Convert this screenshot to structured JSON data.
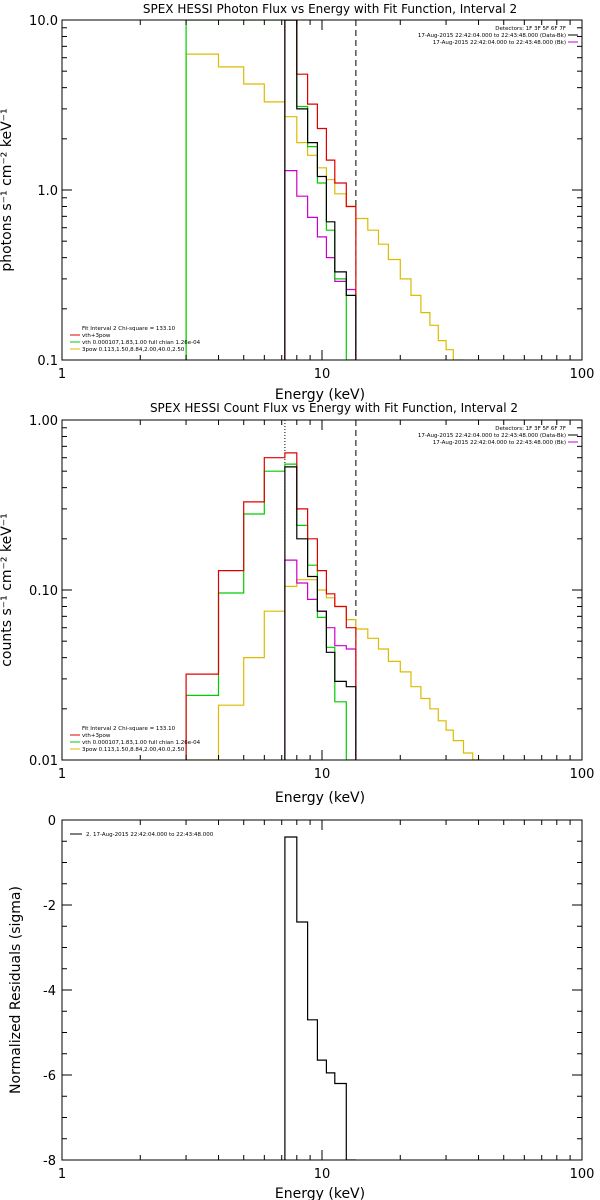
{
  "colors": {
    "black": "#000000",
    "red": "#dd0000",
    "green": "#00cc00",
    "magenta": "#cc00cc",
    "yellow": "#ddbb00"
  },
  "chart_data": [
    {
      "type": "line",
      "scale": "log-log",
      "title": "SPEX HESSI Photon Flux vs Energy with Fit Function, Interval 2",
      "xlabel": "Energy (keV)",
      "ylabel": "photons s⁻¹ cm⁻² keV⁻¹",
      "xlim": [
        1,
        100
      ],
      "ylim": [
        0.1,
        10
      ],
      "xticks": [
        "1",
        "10",
        "100"
      ],
      "yticks": [
        "10.0",
        "1.0",
        "0.1"
      ],
      "vlines": [
        {
          "x": 7.2,
          "style": "dotted"
        },
        {
          "x": 13.5,
          "style": "dashed"
        }
      ],
      "legend_tr": [
        {
          "text": "Detectors: 1F 3F 5F 6F 7F",
          "color": "#000000"
        },
        {
          "text": "17-Aug-2015 22:42:04.000 to 22:43:48.000 (Data-Bk)",
          "color": "#000000"
        },
        {
          "text": "17-Aug-2015 22:42:04.000 to 22:43:48.000 (Bk)",
          "color": "#cc00cc"
        }
      ],
      "legend_bl": [
        {
          "text": "Fit Interval  2    Chi-square = 133.10",
          "color": "#000000"
        },
        {
          "text": "vth+3pow",
          "color": "#dd0000"
        },
        {
          "text": "vth 0.000107,1.83,1.00  full chian 1.26e-04",
          "color": "#00cc00"
        },
        {
          "text": "3pow 0.113,1.50,8.84,2.00,40.0,2.50",
          "color": "#ddbb00"
        }
      ],
      "series": [
        {
          "color": "#000000",
          "edges": [
            7.2,
            8.0,
            8.8,
            9.6,
            10.4,
            11.2,
            12.4,
            13.5
          ],
          "values": [
            10.0,
            3.0,
            1.9,
            1.2,
            0.65,
            0.33,
            0.24
          ]
        },
        {
          "color": "#dd0000",
          "edges": [
            7.2,
            8.0,
            8.8,
            9.6,
            10.4,
            11.2,
            12.4,
            13.5
          ],
          "values": [
            10.0,
            4.8,
            3.2,
            2.3,
            1.5,
            1.1,
            0.8
          ]
        },
        {
          "color": "#00cc00",
          "edges": [
            3.0,
            7.2,
            8.0,
            8.8,
            9.6,
            10.4,
            11.2,
            12.4,
            13.5
          ],
          "values": [
            10.0,
            10.0,
            3.1,
            1.8,
            1.1,
            0.58,
            0.3,
            0.1
          ]
        },
        {
          "color": "#cc00cc",
          "edges": [
            7.2,
            8.0,
            8.8,
            9.6,
            10.4,
            11.2,
            12.4,
            13.5
          ],
          "values": [
            1.3,
            0.92,
            0.69,
            0.53,
            0.4,
            0.29,
            0.26
          ]
        },
        {
          "color": "#ddbb00",
          "edges": [
            3.0,
            4.0,
            5.0,
            6.0,
            7.2,
            8.0,
            8.8,
            9.6,
            10.4,
            11.2,
            12.4,
            13.5,
            15.0,
            16.5,
            18.0,
            20.0,
            22.0,
            24.0,
            26.0,
            28.0,
            30.0,
            32.0,
            35.0
          ],
          "values": [
            6.3,
            5.3,
            4.2,
            3.3,
            2.7,
            1.9,
            1.6,
            1.35,
            1.15,
            0.95,
            0.8,
            0.68,
            0.58,
            0.48,
            0.39,
            0.3,
            0.24,
            0.19,
            0.16,
            0.13,
            0.115,
            0.1
          ]
        }
      ]
    },
    {
      "type": "line",
      "scale": "log-log",
      "title": "SPEX HESSI Count Flux vs Energy with Fit Function, Interval 2",
      "xlabel": "Energy (keV)",
      "ylabel": "counts s⁻¹ cm⁻² keV⁻¹",
      "xlim": [
        1,
        100
      ],
      "ylim": [
        0.01,
        1
      ],
      "xticks": [
        "1",
        "10",
        "100"
      ],
      "yticks": [
        "1.00",
        "0.10",
        "0.01"
      ],
      "vlines": [
        {
          "x": 7.2,
          "style": "dotted"
        },
        {
          "x": 13.5,
          "style": "dashed"
        }
      ],
      "legend_tr": [
        {
          "text": "Detectors: 1F 3F 5F 6F 7F",
          "color": "#000000"
        },
        {
          "text": "17-Aug-2015 22:42:04.000 to 22:43:48.000 (Data-Bk)",
          "color": "#000000"
        },
        {
          "text": "17-Aug-2015 22:42:04.000 to 22:43:48.000 (Bk)",
          "color": "#cc00cc"
        }
      ],
      "legend_bl": [
        {
          "text": "Fit Interval  2    Chi-square = 133.10",
          "color": "#000000"
        },
        {
          "text": "vth+3pow",
          "color": "#dd0000"
        },
        {
          "text": "vth 0.000107,1.83,1.00  full chian 1.26e-04",
          "color": "#00cc00"
        },
        {
          "text": "3pow 0.113,1.50,8.84,2.00,40.0,2.50",
          "color": "#ddbb00"
        }
      ],
      "series": [
        {
          "color": "#000000",
          "edges": [
            7.2,
            8.0,
            8.8,
            9.6,
            10.4,
            11.2,
            12.4,
            13.5
          ],
          "values": [
            0.53,
            0.2,
            0.12,
            0.075,
            0.043,
            0.029,
            0.027
          ]
        },
        {
          "color": "#dd0000",
          "edges": [
            3.0,
            4.0,
            5.0,
            6.0,
            7.2,
            8.0,
            8.8,
            9.6,
            10.4,
            11.2,
            12.4,
            13.5
          ],
          "values": [
            0.032,
            0.13,
            0.33,
            0.6,
            0.64,
            0.3,
            0.2,
            0.13,
            0.095,
            0.08,
            0.06
          ]
        },
        {
          "color": "#00cc00",
          "edges": [
            3.0,
            4.0,
            5.0,
            6.0,
            7.2,
            8.0,
            8.8,
            9.6,
            10.4,
            11.2,
            12.4,
            13.5
          ],
          "values": [
            0.024,
            0.096,
            0.28,
            0.5,
            0.55,
            0.24,
            0.14,
            0.069,
            0.046,
            0.022,
            0.01
          ]
        },
        {
          "color": "#cc00cc",
          "edges": [
            7.2,
            8.0,
            8.8,
            9.6,
            10.4,
            11.2,
            12.4,
            13.5
          ],
          "values": [
            0.15,
            0.11,
            0.088,
            0.075,
            0.06,
            0.047,
            0.045
          ]
        },
        {
          "color": "#ddbb00",
          "edges": [
            3.0,
            4.0,
            5.0,
            6.0,
            7.2,
            8.0,
            8.8,
            9.6,
            10.4,
            11.2,
            12.4,
            13.5,
            15.0,
            16.5,
            18.0,
            20.0,
            22.0,
            24.0,
            26.0,
            28.0,
            30.0,
            32.0,
            35.0,
            38.0,
            41.0
          ],
          "values": [
            0.01,
            0.021,
            0.04,
            0.075,
            0.105,
            0.115,
            0.115,
            0.1,
            0.09,
            0.08,
            0.067,
            0.059,
            0.052,
            0.045,
            0.038,
            0.033,
            0.027,
            0.023,
            0.02,
            0.017,
            0.015,
            0.013,
            0.011,
            0.01
          ]
        }
      ]
    },
    {
      "type": "line",
      "scale": "log-x",
      "title": "",
      "xlabel": "Energy (keV)",
      "ylabel": "Normalized Residuals (sigma)",
      "xlim": [
        1,
        100
      ],
      "ylim": [
        -8,
        0
      ],
      "xticks": [
        "1",
        "10",
        "100"
      ],
      "yticks": [
        "0",
        "-2",
        "-4",
        "-6",
        "-8"
      ],
      "legend_tl": [
        {
          "text": "2. 17-Aug-2015 22:42:04.000 to 22:43:48.000",
          "color": "#000000"
        }
      ],
      "series": [
        {
          "color": "#000000",
          "edges": [
            7.2,
            8.0,
            8.8,
            9.6,
            10.4,
            11.2,
            12.4,
            13.5
          ],
          "values": [
            -0.4,
            -2.4,
            -4.7,
            -5.65,
            -5.95,
            -6.2,
            -8.0
          ]
        }
      ]
    }
  ]
}
